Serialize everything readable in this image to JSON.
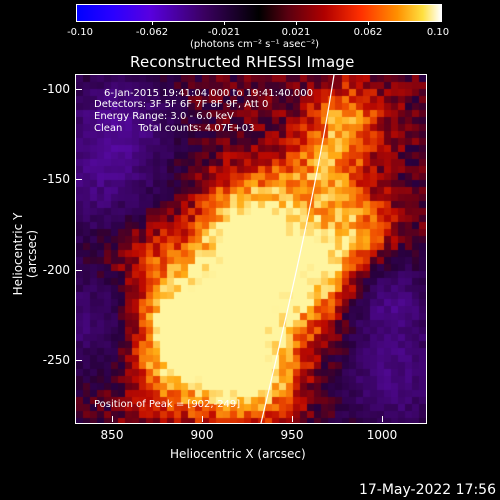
{
  "colorbar": {
    "tick_labels": [
      "-0.10",
      "-0.062",
      "-0.021",
      "0.021",
      "0.062",
      "0.10"
    ],
    "units_label": "(photons cm⁻² s⁻¹ asec⁻²)"
  },
  "plot": {
    "title": "Reconstructed RHESSI Image",
    "info_lines": [
      "6-Jan-2015 19:41:04.000 to 19:41:40.000",
      "Detectors: 3F 5F 6F 7F 8F 9F, Att 0",
      "Energy Range: 3.0 - 6.0 keV",
      "Clean     Total counts: 4.07E+03"
    ],
    "peak_label": "Position of Peak = [902,-249]",
    "xlabel": "Heliocentric X (arcsec)",
    "ylabel": "Heliocentric Y (arcsec)",
    "x_ticks": [
      "850",
      "900",
      "950",
      "1000"
    ],
    "y_ticks": [
      "-100",
      "-150",
      "-200",
      "-250"
    ],
    "xlim": [
      830,
      1025
    ],
    "ylim": [
      -285,
      -92
    ]
  },
  "footer": {
    "timestamp": "17-May-2022 17:56"
  }
}
